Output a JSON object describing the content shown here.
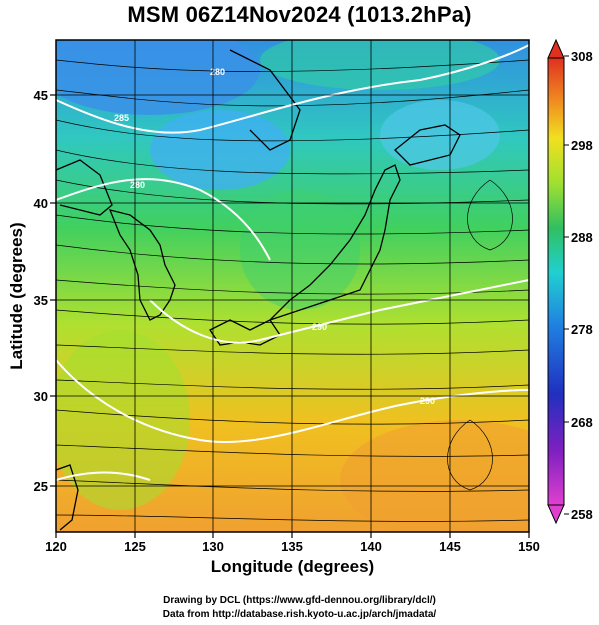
{
  "title": "MSM 06Z14Nov2024 (1013.2hPa)",
  "x_axis": {
    "label": "Longitude (degrees)",
    "ticks": [
      "120",
      "125",
      "130",
      "135",
      "140",
      "145",
      "150"
    ]
  },
  "y_axis": {
    "label": "Latitude  (degrees)",
    "ticks": [
      "25",
      "30",
      "35",
      "40",
      "45"
    ]
  },
  "colorbar": {
    "ticks": [
      "258",
      "268",
      "278",
      "288",
      "298",
      "308"
    ],
    "colors": [
      "#e040d0",
      "#2030c0",
      "#2080e0",
      "#20d0d0",
      "#30c060",
      "#a0e030",
      "#f0e020",
      "#f09020",
      "#e03020"
    ]
  },
  "map": {
    "lon_range": [
      120,
      150
    ],
    "lat_range": [
      22.5,
      47.5
    ],
    "contour_labels": [
      "285",
      "280",
      "290",
      "280",
      "290"
    ],
    "colors": {
      "sea_warm": "#f0a030",
      "sea_mid": "#a0e030",
      "sea_cool": "#30d080",
      "cold": "#30a0e0",
      "contour": "#ffffff"
    }
  },
  "credits": {
    "line1": "Drawing by DCL (https://www.gfd-dennou.org/library/dcl/)",
    "line2": "Data from http://database.rish.kyoto-u.ac.jp/arch/jmadata/"
  }
}
